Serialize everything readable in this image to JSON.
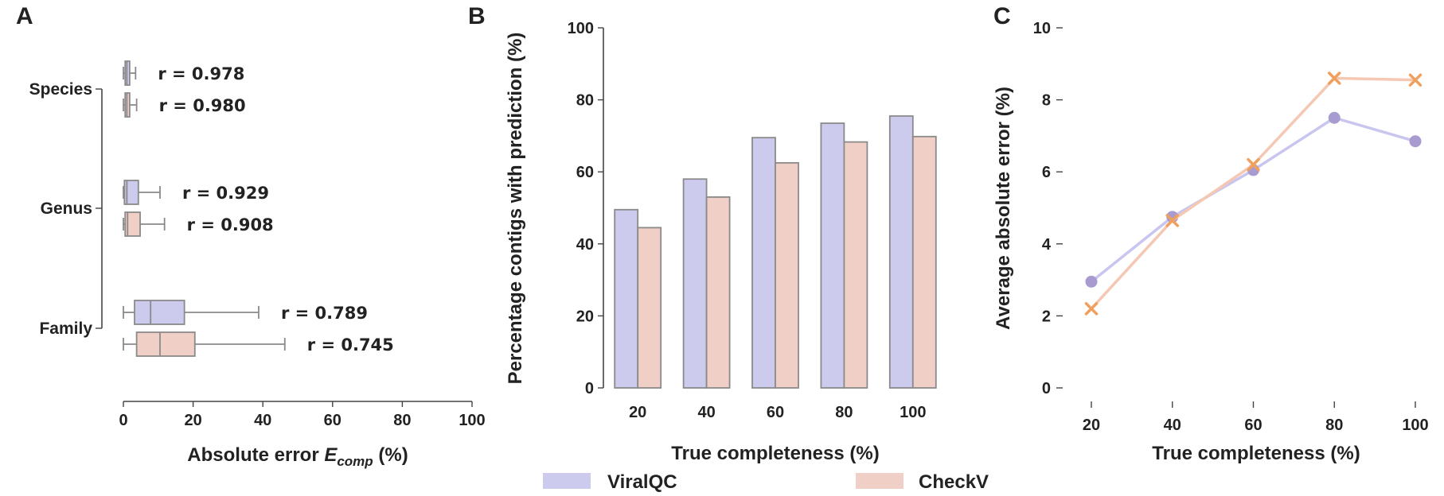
{
  "colors": {
    "viralqc": "#cccbee",
    "checkv": "#f0cfc6",
    "viralqc_line": "#c8c6ee",
    "viralqc_marker": "#a89bcf",
    "checkv_line": "#f5c8b3",
    "checkv_marker": "#f0a05e",
    "edge": "#8a8a8a"
  },
  "chart_data": [
    {
      "panel": "A",
      "type": "box",
      "orientation": "horizontal",
      "xlabel": "Absolute error ",
      "xlabel_symbol": "E",
      "xlabel_subscript": "comp",
      "xlabel_unit": " (%)",
      "xlim": [
        0,
        100
      ],
      "xticks": [
        0,
        20,
        40,
        60,
        80,
        100
      ],
      "categories": [
        "Species",
        "Genus",
        "Family"
      ],
      "series_names": [
        "ViralQC",
        "CheckV"
      ],
      "boxes": [
        {
          "category": "Species",
          "series": "ViralQC",
          "whisker_low": 0,
          "q1": 0.5,
          "median": 1,
          "q3": 1.8,
          "whisker_high": 3.5,
          "r_label": "r = 0.978"
        },
        {
          "category": "Species",
          "series": "CheckV",
          "whisker_low": 0,
          "q1": 0.5,
          "median": 1,
          "q3": 1.8,
          "whisker_high": 3.8,
          "r_label": "r = 0.980"
        },
        {
          "category": "Genus",
          "series": "ViralQC",
          "whisker_low": 0,
          "q1": 0.3,
          "median": 1,
          "q3": 4.3,
          "whisker_high": 10.5,
          "r_label": "r = 0.929"
        },
        {
          "category": "Genus",
          "series": "CheckV",
          "whisker_low": 0,
          "q1": 0.5,
          "median": 1.2,
          "q3": 4.8,
          "whisker_high": 11.8,
          "r_label": "r = 0.908"
        },
        {
          "category": "Family",
          "series": "ViralQC",
          "whisker_low": 0,
          "q1": 3.2,
          "median": 7.8,
          "q3": 17.5,
          "whisker_high": 38.8,
          "r_label": "r = 0.789"
        },
        {
          "category": "Family",
          "series": "CheckV",
          "whisker_low": 0,
          "q1": 3.8,
          "median": 10.5,
          "q3": 20.5,
          "whisker_high": 46.3,
          "r_label": "r = 0.745"
        }
      ]
    },
    {
      "panel": "B",
      "type": "bar",
      "xlabel": "True completeness (%)",
      "ylabel": "Percentage contigs with prediction (%)",
      "ylim": [
        0,
        100
      ],
      "yticks": [
        0,
        20,
        40,
        60,
        80,
        100
      ],
      "categories": [
        "20",
        "40",
        "60",
        "80",
        "100"
      ],
      "series": [
        {
          "name": "ViralQC",
          "values": [
            49.5,
            58,
            69.5,
            73.5,
            75.5
          ]
        },
        {
          "name": "CheckV",
          "values": [
            44.5,
            53,
            62.5,
            68.3,
            69.8
          ]
        }
      ],
      "legend": [
        "ViralQC",
        "CheckV"
      ]
    },
    {
      "panel": "C",
      "type": "line",
      "xlabel": "True completeness (%)",
      "ylabel": "Average absolute error (%)",
      "ylim": [
        0,
        10
      ],
      "yticks": [
        0,
        2,
        4,
        6,
        8,
        10
      ],
      "x": [
        20,
        40,
        60,
        80,
        100
      ],
      "series": [
        {
          "name": "ViralQC",
          "marker": "circle",
          "values": [
            2.95,
            4.75,
            6.05,
            7.5,
            6.85
          ]
        },
        {
          "name": "CheckV",
          "marker": "x",
          "values": [
            2.2,
            4.65,
            6.2,
            8.6,
            8.55
          ]
        }
      ]
    }
  ]
}
